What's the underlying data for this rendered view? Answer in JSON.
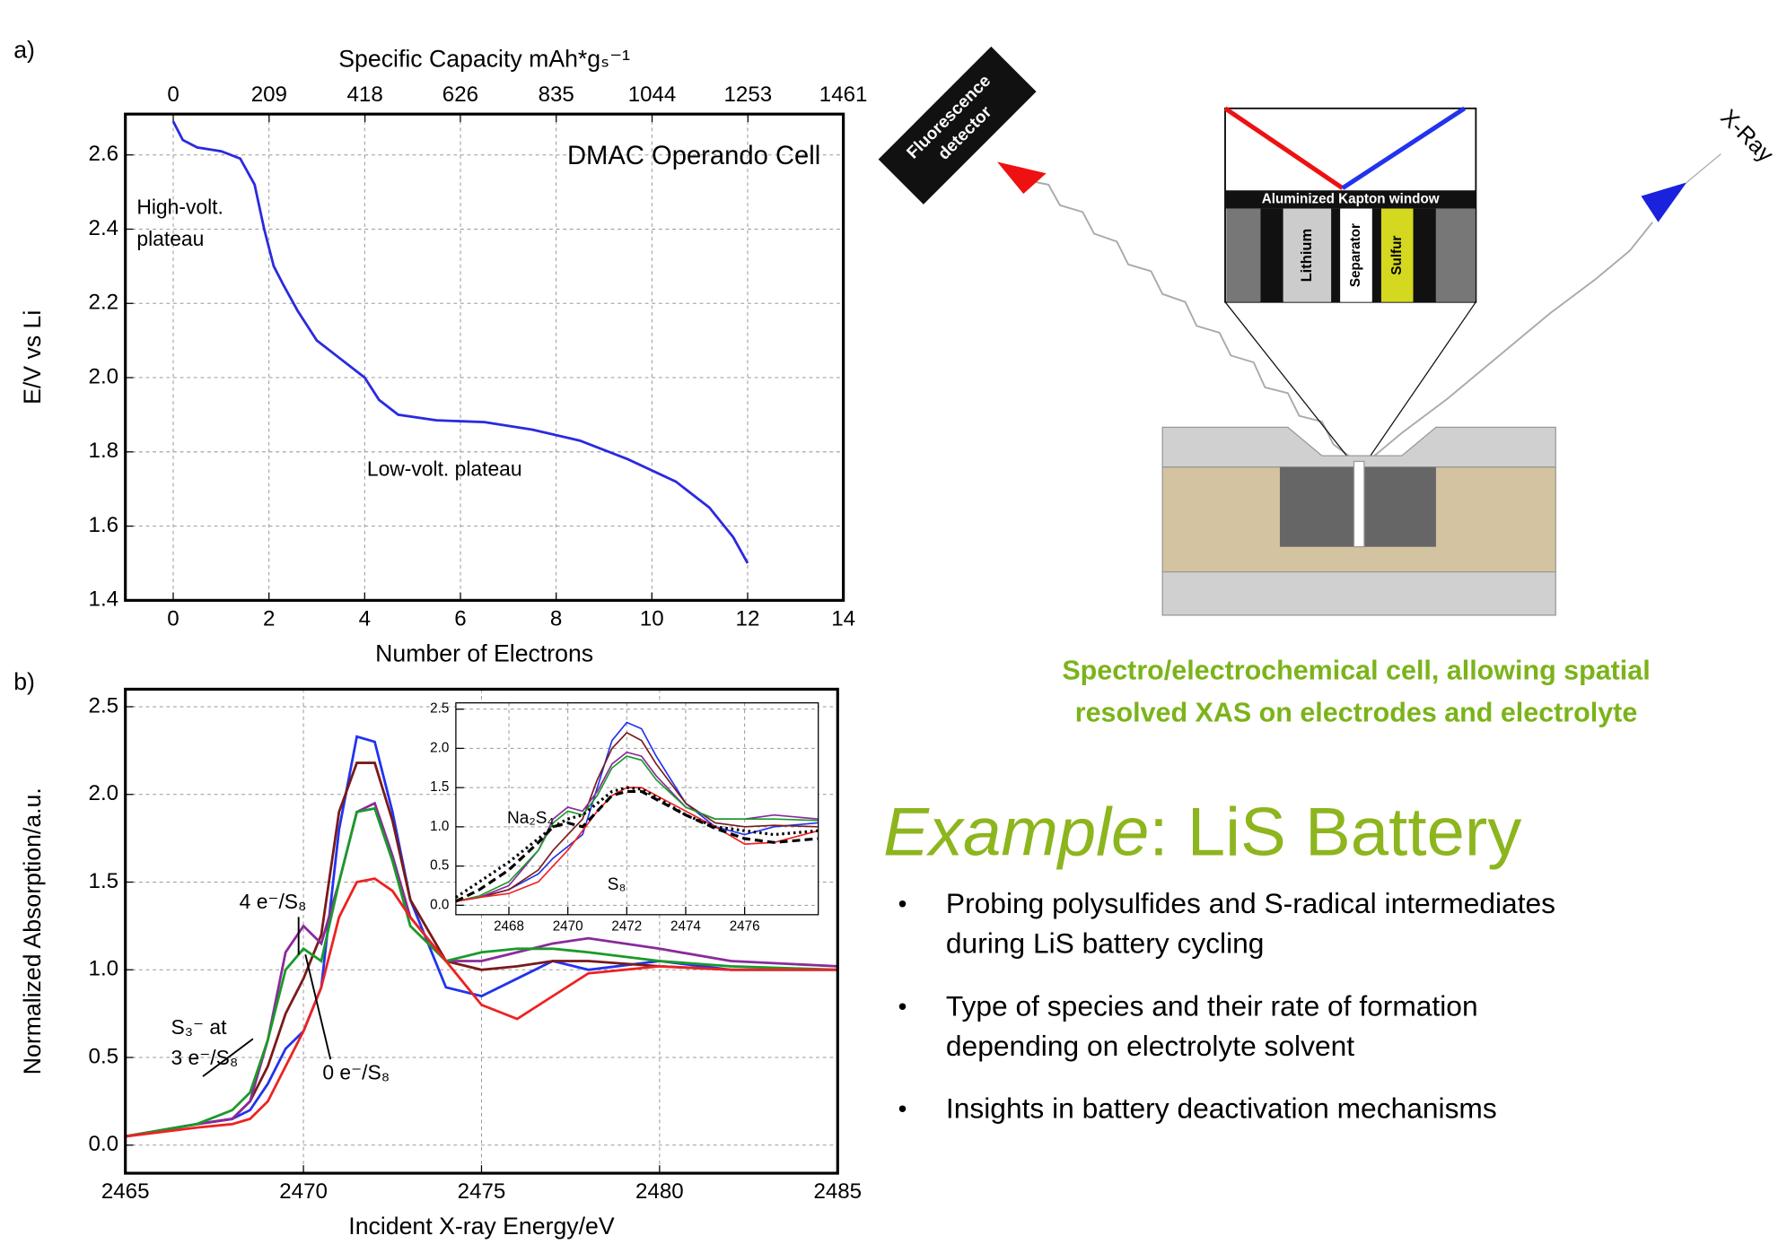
{
  "chart_data": [
    {
      "type": "line",
      "panel_label": "a)",
      "title": "DMAC Operando Cell",
      "x_label": "Number of Electrons",
      "x2_label": "Specific Capacity mAh*gₛ⁻¹",
      "y_label": "E/V vs Li",
      "annotations": [
        "High-volt.",
        "plateau",
        "Low-volt. plateau"
      ],
      "x": [
        0,
        0.2,
        0.5,
        1,
        1.4,
        1.7,
        1.9,
        2.1,
        2.3,
        2.6,
        3,
        3.5,
        4,
        4.3,
        4.7,
        5.5,
        6.5,
        7.5,
        8.5,
        9.5,
        10.5,
        11.2,
        11.7,
        12
      ],
      "series": [
        {
          "color": "#2a2ae0",
          "values": [
            2.69,
            2.64,
            2.62,
            2.61,
            2.59,
            2.52,
            2.4,
            2.3,
            2.25,
            2.18,
            2.1,
            2.05,
            2.0,
            1.94,
            1.9,
            1.885,
            1.88,
            1.86,
            1.83,
            1.78,
            1.72,
            1.65,
            1.57,
            1.5
          ]
        }
      ],
      "xlim": [
        -1,
        14
      ],
      "xticks": [
        0,
        2,
        4,
        6,
        8,
        10,
        12,
        14
      ],
      "x2lim": [
        -104.4,
        1461
      ],
      "x2ticks": [
        0,
        209,
        418,
        626,
        835,
        1044,
        1253,
        1461
      ],
      "ylim": [
        1.4,
        2.71
      ],
      "yticks": [
        1.4,
        1.6,
        1.8,
        {
          "value": 2,
          "label": "2.0"
        },
        2.2,
        2.4,
        2.6
      ],
      "grid": true
    },
    {
      "type": "line",
      "panel_label": "b)",
      "x_label": "Incident X-ray Energy/eV",
      "y_label": "Normalized Absorption/a.u.",
      "annotations": [
        "4 e⁻/S₈",
        "S₃⁻ at",
        "3 e⁻/S₈",
        "0 e⁻/S₈"
      ],
      "x": [
        2465,
        2467,
        2468,
        2468.5,
        2469,
        2469.5,
        2470,
        2470.5,
        2471,
        2471.5,
        2472,
        2472.5,
        2473,
        2474,
        2475,
        2476,
        2477,
        2478,
        2480,
        2482,
        2485
      ],
      "series": [
        {
          "color": "#2233ee",
          "values": [
            0.05,
            0.12,
            0.15,
            0.2,
            0.35,
            0.55,
            0.65,
            0.9,
            1.8,
            2.33,
            2.3,
            1.9,
            1.4,
            0.9,
            0.85,
            0.95,
            1.05,
            1.0,
            1.05,
            1.0,
            1.0
          ]
        },
        {
          "color": "#7a1a1a",
          "values": [
            0.05,
            0.12,
            0.15,
            0.25,
            0.45,
            0.75,
            0.95,
            1.2,
            1.9,
            2.18,
            2.18,
            1.85,
            1.4,
            1.05,
            1.0,
            1.02,
            1.05,
            1.05,
            1.02,
            1.0,
            1.0
          ]
        },
        {
          "color": "#8a2a9a",
          "values": [
            0.05,
            0.12,
            0.15,
            0.25,
            0.6,
            1.1,
            1.25,
            1.15,
            1.5,
            1.9,
            1.95,
            1.65,
            1.3,
            1.05,
            1.05,
            1.1,
            1.15,
            1.18,
            1.12,
            1.05,
            1.02
          ]
        },
        {
          "color": "#1a9a2a",
          "values": [
            0.05,
            0.12,
            0.2,
            0.3,
            0.6,
            1.0,
            1.12,
            1.05,
            1.5,
            1.9,
            1.92,
            1.62,
            1.25,
            1.05,
            1.1,
            1.12,
            1.12,
            1.1,
            1.05,
            1.02,
            1.0
          ]
        },
        {
          "color": "#ee2222",
          "values": [
            0.05,
            0.1,
            0.12,
            0.15,
            0.25,
            0.45,
            0.65,
            0.9,
            1.3,
            1.5,
            1.52,
            1.45,
            1.3,
            1.05,
            0.8,
            0.72,
            0.85,
            0.98,
            1.02,
            1.0,
            1.0
          ]
        }
      ],
      "xlim": [
        2465,
        2485
      ],
      "xticks": [
        2465,
        2470,
        2475,
        2480,
        2485
      ],
      "ylim": [
        -0.16,
        2.6
      ],
      "yticks": [
        {
          "value": 0,
          "label": "0.0"
        },
        0.5,
        {
          "value": 1,
          "label": "1.0"
        },
        1.5,
        {
          "value": 2,
          "label": "2.0"
        },
        2.5
      ],
      "grid": true
    },
    {
      "type": "line",
      "annotations": [
        "Na₂S₄",
        "S₈"
      ],
      "x": [
        2466.2,
        2467,
        2468,
        2469,
        2469.5,
        2470,
        2470.5,
        2471,
        2471.5,
        2472,
        2472.5,
        2473,
        2474,
        2475,
        2476,
        2477,
        2478.5
      ],
      "series": [
        {
          "color": "#2233ee",
          "values": [
            0.05,
            0.1,
            0.2,
            0.4,
            0.6,
            0.75,
            0.9,
            1.5,
            2.1,
            2.33,
            2.25,
            1.9,
            1.3,
            1.0,
            0.9,
            1.0,
            1.05
          ]
        },
        {
          "color": "#7a1a1a",
          "values": [
            0.05,
            0.1,
            0.2,
            0.45,
            0.7,
            0.9,
            1.1,
            1.6,
            2.0,
            2.2,
            2.1,
            1.8,
            1.3,
            1.05,
            1.0,
            1.02,
            1.0
          ]
        },
        {
          "color": "#8a2a9a",
          "values": [
            0.05,
            0.1,
            0.25,
            0.7,
            1.1,
            1.25,
            1.2,
            1.45,
            1.8,
            1.95,
            1.9,
            1.65,
            1.25,
            1.1,
            1.1,
            1.15,
            1.1
          ]
        },
        {
          "color": "#1a9a2a",
          "values": [
            0.05,
            0.12,
            0.3,
            0.7,
            1.05,
            1.2,
            1.15,
            1.4,
            1.75,
            1.9,
            1.85,
            1.6,
            1.25,
            1.1,
            1.1,
            1.1,
            1.08
          ]
        },
        {
          "color": "#ee2222",
          "values": [
            0.05,
            0.1,
            0.15,
            0.3,
            0.5,
            0.7,
            0.95,
            1.2,
            1.4,
            1.5,
            1.5,
            1.4,
            1.2,
            1.0,
            0.78,
            0.8,
            0.95
          ]
        },
        {
          "color": "#000000",
          "style": "dotted",
          "values": [
            0.1,
            0.3,
            0.55,
            0.85,
            1.0,
            1.1,
            1.15,
            1.3,
            1.45,
            1.5,
            1.48,
            1.38,
            1.15,
            1.0,
            0.95,
            0.9,
            0.95
          ]
        },
        {
          "color": "#000000",
          "style": "dashed",
          "values": [
            0.05,
            0.2,
            0.45,
            0.8,
            1.0,
            1.05,
            1.0,
            1.2,
            1.4,
            1.45,
            1.45,
            1.35,
            1.15,
            0.98,
            0.85,
            0.8,
            0.85
          ]
        }
      ],
      "xlim": [
        2466.2,
        2478.5
      ],
      "xticks": [
        2468,
        2470,
        2472,
        2474,
        2476
      ],
      "ylim": [
        -0.12,
        2.58
      ],
      "yticks": [
        {
          "value": 0,
          "label": "0.0"
        },
        0.5,
        {
          "value": 1,
          "label": "1.0"
        },
        1.5,
        {
          "value": 2,
          "label": "2.0"
        },
        2.5
      ],
      "grid": true
    }
  ],
  "diagram": {
    "detector": [
      "Fluorescence",
      "detector"
    ],
    "xray": "X-Ray",
    "window": "Aluminized Kapton window",
    "layers": [
      "Lithium",
      "Separator",
      "Sulfur"
    ]
  },
  "caption": [
    "Spectro/electrochemical cell, allowing spatial",
    "resolved XAS on electrodes and electrolyte"
  ],
  "heading": {
    "emphasis": "Example",
    "rest": ": LiS Battery"
  },
  "bullets": [
    [
      "Probing polysulfides and S-radical intermediates",
      "during LiS battery cycling"
    ],
    [
      "Type of species and their rate of formation",
      "depending on electrolyte solvent"
    ],
    [
      "Insights in battery deactivation mechanisms"
    ]
  ]
}
